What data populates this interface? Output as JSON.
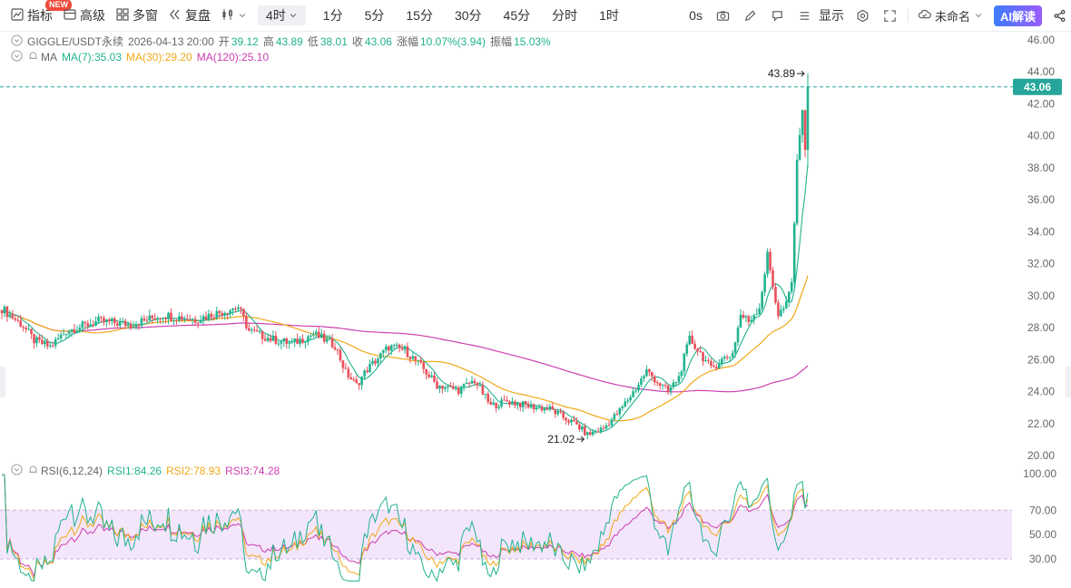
{
  "toolbar": {
    "indicators": "指标",
    "new_badge": "NEW",
    "advanced": "高级",
    "multi_window": "多窗",
    "replay": "复盘",
    "timeframe_active": "4时",
    "timeframes": [
      "1分",
      "5分",
      "15分",
      "30分",
      "45分",
      "分时",
      "1时"
    ],
    "countdown": "0s",
    "display": "显示",
    "layout_name": "未命名",
    "ai": "AI解读"
  },
  "header": {
    "symbol": "GIGGLE/USDT永续",
    "datetime": "2026-04-13 20:00",
    "open_label": "开",
    "open": "39.12",
    "high_label": "高",
    "high": "43.89",
    "low_label": "低",
    "low": "38.01",
    "close_label": "收",
    "close": "43.06",
    "change_label": "涨幅",
    "change": "10.07%(3.94)",
    "amplitude_label": "振幅",
    "amplitude": "15.03%"
  },
  "ma_legend": {
    "name": "MA",
    "ma7": "MA(7):35.03",
    "ma30": "MA(30):29.20",
    "ma120": "MA(120):25.10"
  },
  "rsi_legend": {
    "name": "RSI(6,12,24)",
    "rsi1": "RSI1:84.26",
    "rsi2": "RSI2:78.93",
    "rsi3": "RSI3:74.28"
  },
  "colors": {
    "up": "#21b38f",
    "down": "#e8505b",
    "ma7": "#21b38f",
    "ma30": "#f0a818",
    "ma120": "#cc3fb0",
    "rsi_band": "#f3e6fb",
    "accent": "#26a69a"
  },
  "chart_data": {
    "type": "candlestick",
    "price_axis": {
      "ticks": [
        46,
        44,
        42,
        40,
        38,
        36,
        34,
        32,
        30,
        28,
        26,
        24,
        22,
        20
      ],
      "ylim": [
        19.7,
        46.8
      ]
    },
    "last_price": 43.06,
    "high_marker": {
      "label": "43.89",
      "value": 43.89
    },
    "low_marker": {
      "label": "21.02",
      "value": 21.02
    },
    "keypoints": [
      [
        0,
        29.2
      ],
      [
        8,
        28.1
      ],
      [
        12,
        27.2
      ],
      [
        18,
        26.8
      ],
      [
        24,
        27.8
      ],
      [
        36,
        28.4
      ],
      [
        48,
        28.2
      ],
      [
        60,
        28.8
      ],
      [
        72,
        28.5
      ],
      [
        80,
        28.9
      ],
      [
        88,
        29.3
      ],
      [
        92,
        27.8
      ],
      [
        100,
        27.3
      ],
      [
        108,
        27.0
      ],
      [
        116,
        27.6
      ],
      [
        124,
        26.9
      ],
      [
        128,
        25.2
      ],
      [
        132,
        24.4
      ],
      [
        136,
        25.4
      ],
      [
        144,
        26.8
      ],
      [
        150,
        26.6
      ],
      [
        156,
        25.6
      ],
      [
        162,
        24.4
      ],
      [
        170,
        24.1
      ],
      [
        176,
        24.7
      ],
      [
        182,
        23.1
      ],
      [
        188,
        23.4
      ],
      [
        196,
        23.1
      ],
      [
        204,
        22.9
      ],
      [
        210,
        22.3
      ],
      [
        214,
        21.9
      ],
      [
        218,
        21.3
      ],
      [
        224,
        21.7
      ],
      [
        230,
        22.8
      ],
      [
        236,
        24.2
      ],
      [
        240,
        25.3
      ],
      [
        244,
        24.6
      ],
      [
        248,
        24.0
      ],
      [
        252,
        24.9
      ],
      [
        256,
        27.3
      ],
      [
        260,
        26.4
      ],
      [
        264,
        25.4
      ],
      [
        268,
        26.0
      ],
      [
        272,
        26.4
      ],
      [
        275,
        28.8
      ],
      [
        278,
        28.4
      ],
      [
        282,
        29.3
      ],
      [
        285,
        32.5
      ],
      [
        289,
        28.8
      ],
      [
        292,
        29.4
      ],
      [
        294,
        30.8
      ],
      [
        296,
        38.5
      ],
      [
        298,
        41.6
      ],
      [
        299,
        39.12
      ],
      [
        300,
        43.06
      ]
    ],
    "rsi_axis": {
      "ticks": [
        100,
        70,
        50,
        30
      ],
      "band": [
        30,
        70
      ],
      "ylim": [
        10,
        102
      ]
    },
    "rsi_end": {
      "rsi1": 84.26,
      "rsi2": 78.93,
      "rsi3": 74.28
    }
  }
}
